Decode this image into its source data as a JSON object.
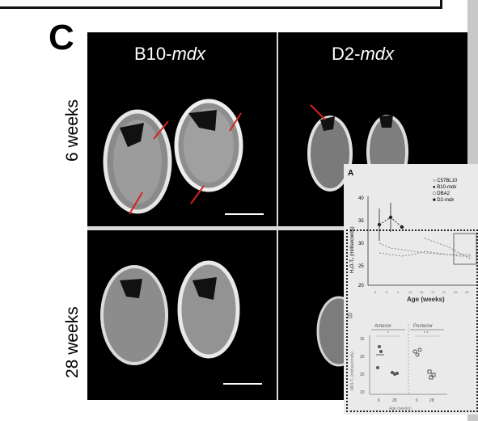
{
  "panel_letter": "C",
  "columns": [
    {
      "prefix": "B10-",
      "strain": "mdx"
    },
    {
      "prefix": "D2-",
      "strain": "mdx"
    }
  ],
  "rows": [
    "6 weeks",
    "28 weeks"
  ],
  "inset": {
    "panel_a_letter": "A",
    "panel_b_letter": "B",
    "legend": [
      {
        "prefix": "C57BL10",
        "strain": "",
        "marker": "open-circle"
      },
      {
        "prefix": "B10-",
        "strain": "mdx",
        "marker": "filled-circle"
      },
      {
        "prefix": "DBA2",
        "strain": "",
        "marker": "open-square"
      },
      {
        "prefix": "D2-",
        "strain": "mdx",
        "marker": "filled-square"
      }
    ],
    "panel_a_ylabel": "H₂O-T₂ (milliseconds)",
    "panel_a_xlabel": "Age (weeks)",
    "panel_a_yticks": [
      "40",
      "35",
      "30",
      "25",
      "20"
    ],
    "panel_a_xticks": [
      "3",
      "6",
      "9",
      "12",
      "15",
      "17",
      "21",
      "25",
      "28"
    ],
    "panel_b_group_labels": [
      "Anterior",
      "Posterior"
    ],
    "panel_b_sig": [
      "*",
      "* *"
    ],
    "panel_b_ylabel": "MRI-T₂ (milliseconds)",
    "panel_b_xlabel": "Age (weeks)",
    "panel_b_yticks": [
      "35",
      "30",
      "25",
      "20"
    ],
    "panel_b_xticks": [
      "6",
      "28",
      "6",
      "28"
    ]
  }
}
